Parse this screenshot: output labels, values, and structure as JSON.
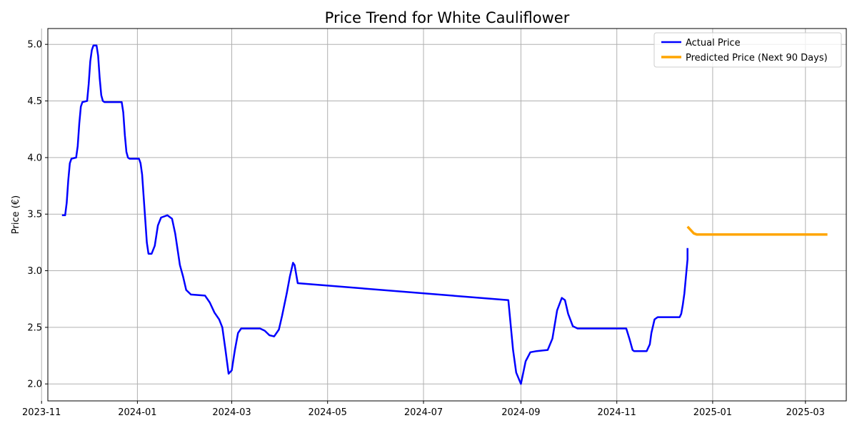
{
  "chart_data": {
    "type": "line",
    "title": "Price Trend for White Cauliflower",
    "xlabel": "",
    "ylabel": "Price (€)",
    "x_axis": "date",
    "xlim": [
      "2023-11-05",
      "2025-03-27"
    ],
    "ylim": [
      1.85,
      5.14
    ],
    "grid": true,
    "legend_position": "top-right",
    "x_ticks": [
      {
        "value": "2023-11-01",
        "label": "2023-11"
      },
      {
        "value": "2024-01-01",
        "label": "2024-01"
      },
      {
        "value": "2024-03-01",
        "label": "2024-03"
      },
      {
        "value": "2024-05-01",
        "label": "2024-05"
      },
      {
        "value": "2024-07-01",
        "label": "2024-07"
      },
      {
        "value": "2024-09-01",
        "label": "2024-09"
      },
      {
        "value": "2024-11-01",
        "label": "2024-11"
      },
      {
        "value": "2025-01-01",
        "label": "2025-01"
      },
      {
        "value": "2025-03-01",
        "label": "2025-03"
      }
    ],
    "y_ticks": [
      {
        "value": 2.0,
        "label": "2.0"
      },
      {
        "value": 2.5,
        "label": "2.5"
      },
      {
        "value": 3.0,
        "label": "3.0"
      },
      {
        "value": 3.5,
        "label": "3.5"
      },
      {
        "value": 4.0,
        "label": "4.0"
      },
      {
        "value": 4.5,
        "label": "4.5"
      },
      {
        "value": 5.0,
        "label": "5.0"
      }
    ],
    "series": [
      {
        "name": "Actual Price",
        "color": "#0000ff",
        "points": [
          [
            "2023-11-14",
            3.49
          ],
          [
            "2023-11-16",
            3.49
          ],
          [
            "2023-11-17",
            3.6
          ],
          [
            "2023-11-18",
            3.8
          ],
          [
            "2023-11-19",
            3.95
          ],
          [
            "2023-11-20",
            3.99
          ],
          [
            "2023-11-23",
            4.0
          ],
          [
            "2023-11-24",
            4.1
          ],
          [
            "2023-11-25",
            4.3
          ],
          [
            "2023-11-26",
            4.45
          ],
          [
            "2023-11-27",
            4.49
          ],
          [
            "2023-11-30",
            4.5
          ],
          [
            "2023-12-01",
            4.65
          ],
          [
            "2023-12-02",
            4.85
          ],
          [
            "2023-12-03",
            4.95
          ],
          [
            "2023-12-04",
            4.99
          ],
          [
            "2023-12-06",
            4.99
          ],
          [
            "2023-12-07",
            4.9
          ],
          [
            "2023-12-08",
            4.7
          ],
          [
            "2023-12-09",
            4.55
          ],
          [
            "2023-12-10",
            4.5
          ],
          [
            "2023-12-11",
            4.49
          ],
          [
            "2023-12-22",
            4.49
          ],
          [
            "2023-12-23",
            4.4
          ],
          [
            "2023-12-24",
            4.2
          ],
          [
            "2023-12-25",
            4.05
          ],
          [
            "2023-12-26",
            4.0
          ],
          [
            "2023-12-27",
            3.99
          ],
          [
            "2024-01-02",
            3.99
          ],
          [
            "2024-01-03",
            3.95
          ],
          [
            "2024-01-04",
            3.85
          ],
          [
            "2024-01-05",
            3.65
          ],
          [
            "2024-01-06",
            3.45
          ],
          [
            "2024-01-07",
            3.25
          ],
          [
            "2024-01-08",
            3.15
          ],
          [
            "2024-01-10",
            3.15
          ],
          [
            "2024-01-12",
            3.22
          ],
          [
            "2024-01-14",
            3.4
          ],
          [
            "2024-01-16",
            3.47
          ],
          [
            "2024-01-20",
            3.49
          ],
          [
            "2024-01-23",
            3.46
          ],
          [
            "2024-01-25",
            3.33
          ],
          [
            "2024-01-28",
            3.05
          ],
          [
            "2024-01-30",
            2.95
          ],
          [
            "2024-02-01",
            2.83
          ],
          [
            "2024-02-04",
            2.79
          ],
          [
            "2024-02-13",
            2.78
          ],
          [
            "2024-02-16",
            2.72
          ],
          [
            "2024-02-19",
            2.63
          ],
          [
            "2024-02-22",
            2.57
          ],
          [
            "2024-02-24",
            2.5
          ],
          [
            "2024-02-26",
            2.3
          ],
          [
            "2024-02-28",
            2.09
          ],
          [
            "2024-03-01",
            2.12
          ],
          [
            "2024-03-03",
            2.3
          ],
          [
            "2024-03-05",
            2.45
          ],
          [
            "2024-03-07",
            2.49
          ],
          [
            "2024-03-19",
            2.49
          ],
          [
            "2024-03-22",
            2.47
          ],
          [
            "2024-03-25",
            2.43
          ],
          [
            "2024-03-28",
            2.42
          ],
          [
            "2024-03-31",
            2.48
          ],
          [
            "2024-04-02",
            2.6
          ],
          [
            "2024-04-05",
            2.8
          ],
          [
            "2024-04-07",
            2.95
          ],
          [
            "2024-04-09",
            3.07
          ],
          [
            "2024-04-10",
            3.05
          ],
          [
            "2024-04-12",
            2.89
          ],
          [
            "2024-08-24",
            2.74
          ],
          [
            "2024-08-27",
            2.3
          ],
          [
            "2024-08-29",
            2.1
          ],
          [
            "2024-09-01",
            2.0
          ],
          [
            "2024-09-04",
            2.2
          ],
          [
            "2024-09-07",
            2.28
          ],
          [
            "2024-09-11",
            2.29
          ],
          [
            "2024-09-18",
            2.3
          ],
          [
            "2024-09-21",
            2.4
          ],
          [
            "2024-09-24",
            2.65
          ],
          [
            "2024-09-27",
            2.76
          ],
          [
            "2024-09-29",
            2.74
          ],
          [
            "2024-10-01",
            2.62
          ],
          [
            "2024-10-04",
            2.51
          ],
          [
            "2024-10-07",
            2.49
          ],
          [
            "2024-11-07",
            2.49
          ],
          [
            "2024-11-09",
            2.4
          ],
          [
            "2024-11-11",
            2.3
          ],
          [
            "2024-11-12",
            2.29
          ],
          [
            "2024-11-20",
            2.29
          ],
          [
            "2024-11-22",
            2.35
          ],
          [
            "2024-11-23",
            2.45
          ],
          [
            "2024-11-25",
            2.57
          ],
          [
            "2024-11-27",
            2.59
          ],
          [
            "2024-12-11",
            2.59
          ],
          [
            "2024-12-12",
            2.62
          ],
          [
            "2024-12-13",
            2.7
          ],
          [
            "2024-12-14",
            2.8
          ],
          [
            "2024-12-15",
            2.95
          ],
          [
            "2024-12-16",
            3.1
          ],
          [
            "2024-12-16",
            3.2
          ]
        ]
      },
      {
        "name": "Predicted Price (Next 90 Days)",
        "color": "#ffa500",
        "points": [
          [
            "2024-12-16",
            3.39
          ],
          [
            "2024-12-18",
            3.36
          ],
          [
            "2024-12-20",
            3.33
          ],
          [
            "2024-12-22",
            3.32
          ],
          [
            "2025-03-15",
            3.32
          ]
        ]
      }
    ]
  }
}
